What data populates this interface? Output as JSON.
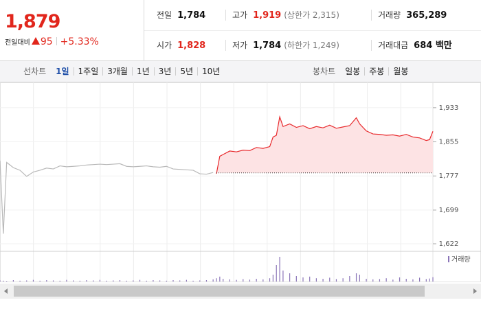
{
  "quote": {
    "price": "1,879",
    "change_label": "전일대비",
    "change": "95",
    "change_pct": "+5.33%"
  },
  "info": [
    {
      "label": "전일",
      "value": "1,784"
    },
    {
      "label": "고가",
      "value": "1,919",
      "note": "(상한가 2,315)"
    },
    {
      "label": "거래량",
      "value": "365,289"
    },
    {
      "label": "시가",
      "value": "1,828"
    },
    {
      "label": "저가",
      "value": "1,784",
      "note": "(하한가 1,249)"
    },
    {
      "label": "거래대금",
      "value": "684 백만"
    }
  ],
  "tabs": {
    "line_label": "선차트",
    "line_tabs": [
      "1일",
      "1주일",
      "3개월",
      "1년",
      "3년",
      "5년",
      "10년"
    ],
    "selected": 0,
    "candle_label": "봉차트",
    "candle_tabs": [
      "일봉",
      "주봉",
      "월봉"
    ]
  },
  "chart_data": {
    "type": "line",
    "xlim": [
      0,
      130
    ],
    "ylim": [
      1611,
      1983
    ],
    "yticks": [
      {
        "value": 1933,
        "label": "1,933"
      },
      {
        "value": 1855,
        "label": "1,855"
      },
      {
        "value": 1777,
        "label": "1,777"
      },
      {
        "value": 1699,
        "label": "1,699"
      },
      {
        "value": 1622,
        "label": "1,622"
      }
    ],
    "grid": true,
    "baseline": 1784,
    "volume_label": "거래량",
    "volume_ylim": [
      0,
      100
    ],
    "volume_color": "#8a74b8",
    "series": [
      {
        "color": "#b8b8b8",
        "x": [
          0,
          1,
          2,
          4,
          6,
          8,
          10,
          12,
          14,
          16,
          18,
          20,
          22,
          24,
          26,
          28,
          30,
          32,
          34,
          36,
          38,
          40,
          42,
          44,
          46,
          48,
          50,
          52,
          54,
          56,
          58,
          60,
          62,
          64
        ],
        "values": [
          1812,
          1645,
          1808,
          1796,
          1790,
          1776,
          1786,
          1790,
          1795,
          1793,
          1800,
          1798,
          1799,
          1800,
          1802,
          1803,
          1804,
          1803,
          1804,
          1805,
          1799,
          1798,
          1799,
          1800,
          1798,
          1797,
          1799,
          1793,
          1792,
          1791,
          1790,
          1782,
          1781,
          1785
        ],
        "volume": [
          4,
          3,
          2,
          5,
          3,
          4,
          6,
          3,
          5,
          4,
          3,
          6,
          4,
          3,
          5,
          4,
          6,
          3,
          4,
          5,
          3,
          4,
          6,
          3,
          5,
          4,
          3,
          5,
          4,
          6,
          3,
          4,
          5,
          8
        ]
      },
      {
        "color": "#e8282b",
        "fill": "#fde3e4",
        "x": [
          65,
          66,
          67,
          69,
          71,
          73,
          75,
          77,
          79,
          81,
          82,
          83,
          84,
          85,
          87,
          89,
          91,
          93,
          95,
          97,
          99,
          101,
          103,
          105,
          107,
          108,
          110,
          112,
          114,
          116,
          118,
          120,
          122,
          124,
          126,
          128,
          129,
          130
        ],
        "values": [
          1782,
          1822,
          1826,
          1834,
          1832,
          1836,
          1835,
          1842,
          1840,
          1844,
          1866,
          1870,
          1912,
          1890,
          1896,
          1888,
          1892,
          1885,
          1890,
          1887,
          1893,
          1886,
          1889,
          1892,
          1910,
          1896,
          1880,
          1873,
          1872,
          1870,
          1871,
          1868,
          1872,
          1866,
          1864,
          1858,
          1860,
          1879
        ],
        "volume": [
          12,
          18,
          10,
          8,
          6,
          9,
          7,
          10,
          8,
          12,
          25,
          60,
          90,
          40,
          30,
          20,
          15,
          18,
          12,
          10,
          14,
          9,
          12,
          20,
          30,
          25,
          10,
          8,
          9,
          12,
          7,
          15,
          10,
          8,
          14,
          9,
          11,
          16
        ]
      }
    ]
  }
}
